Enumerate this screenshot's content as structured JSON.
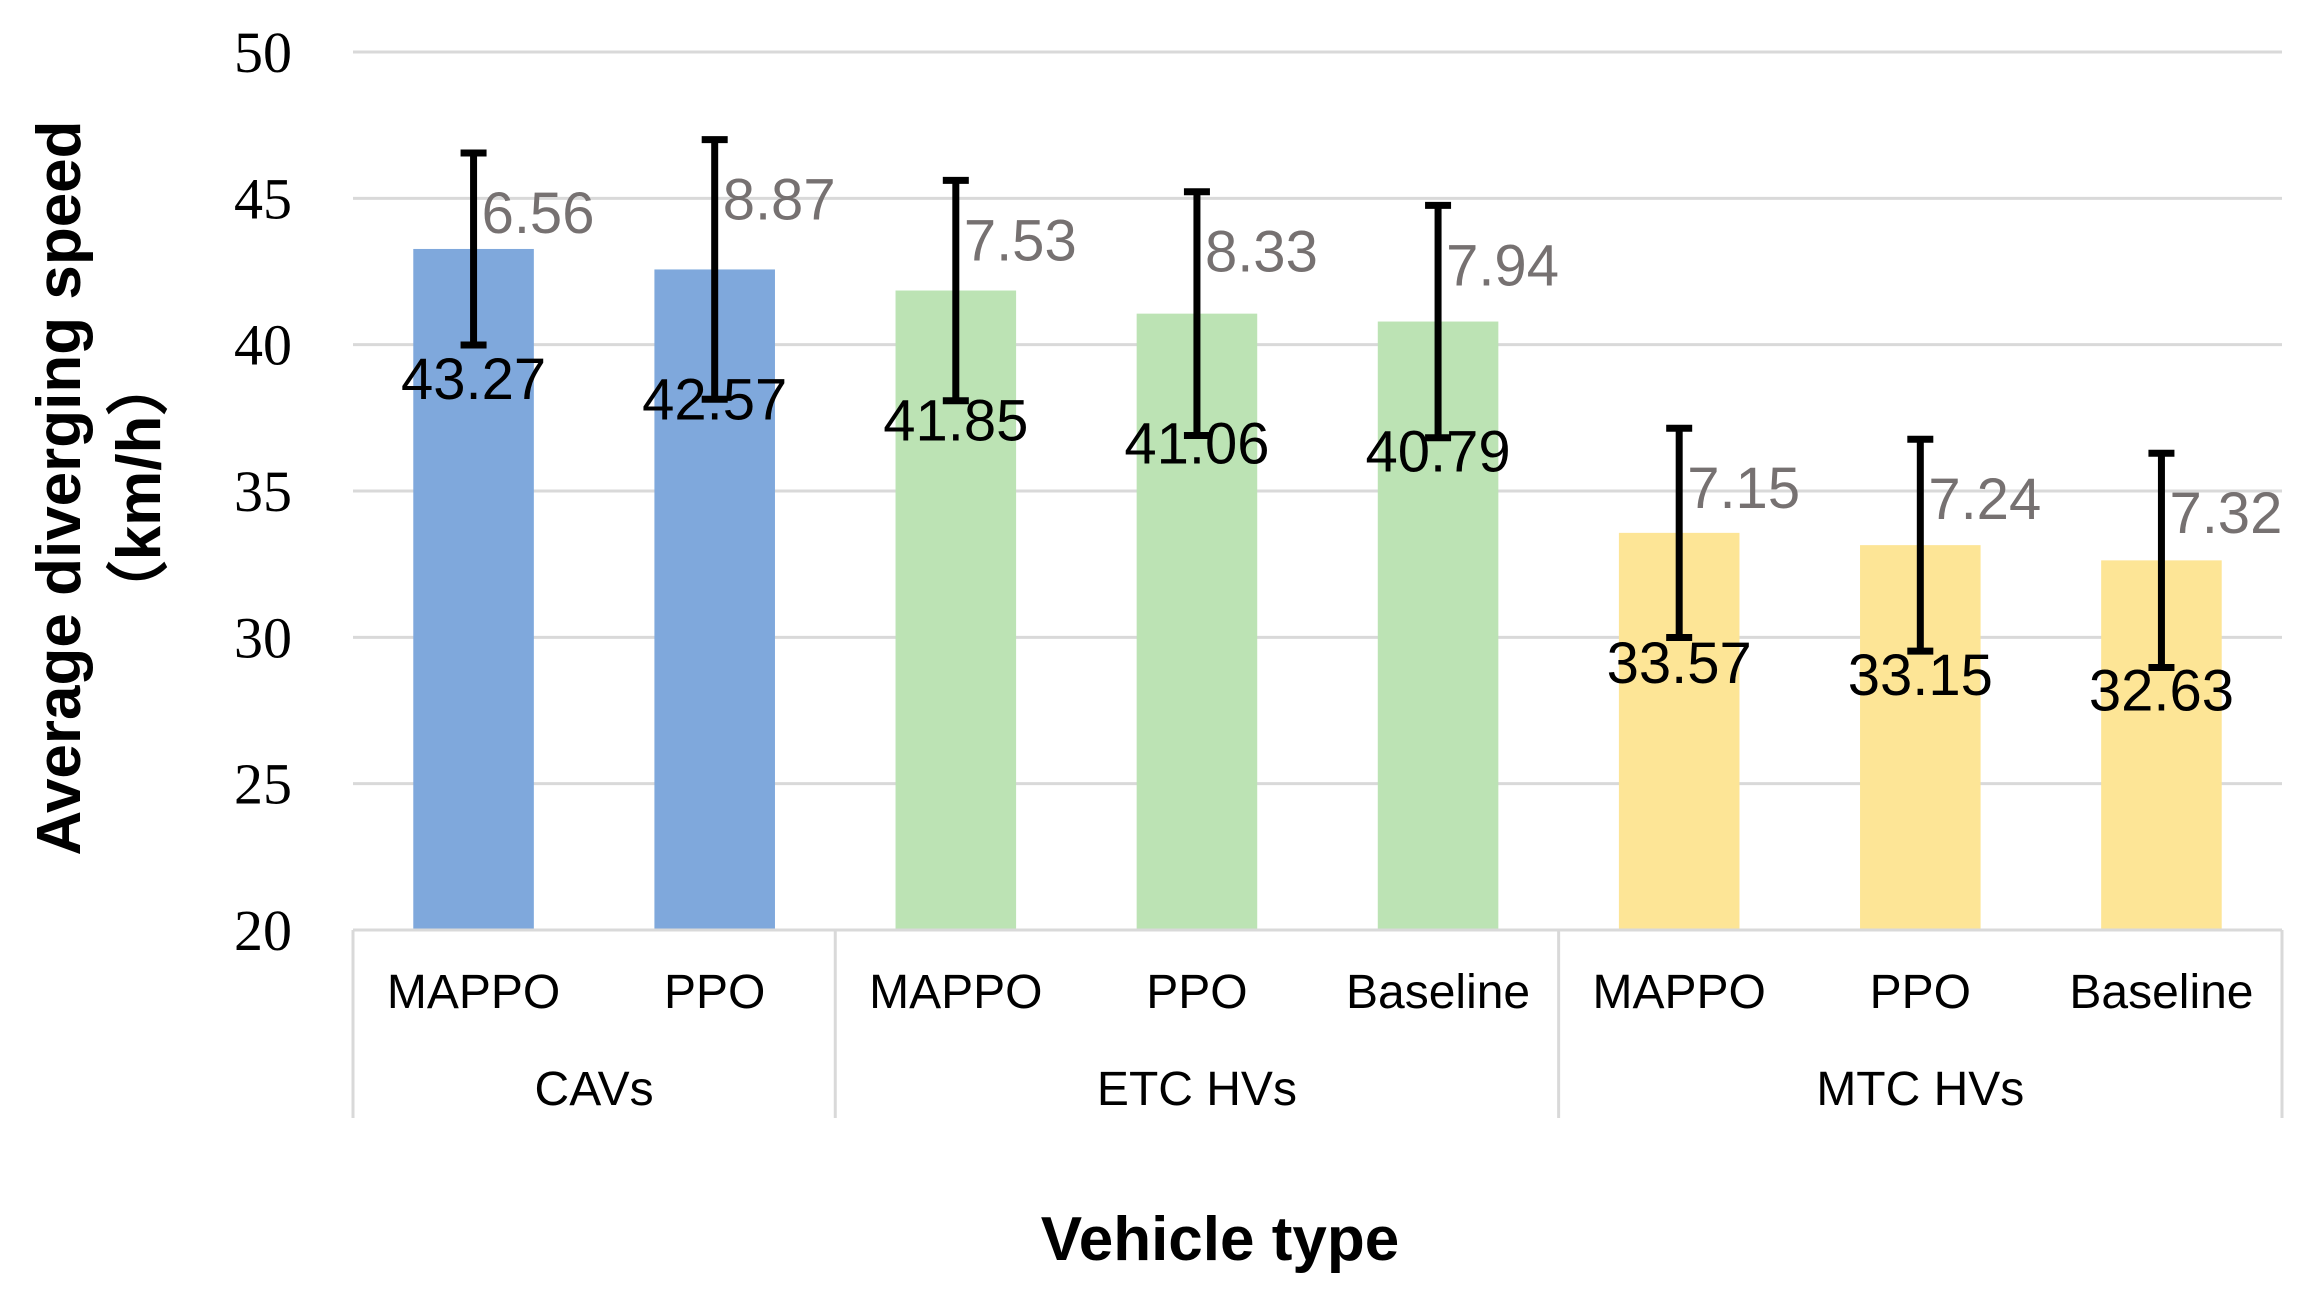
{
  "chart_data": {
    "type": "bar",
    "xlabel": "Vehicle type",
    "ylabel": "Average diverging speed（km/h）",
    "ylabel_lines": [
      "Average diverging speed",
      "（km/h）"
    ],
    "ylim": [
      20,
      50
    ],
    "yticks": [
      20,
      25,
      30,
      35,
      40,
      45,
      50
    ],
    "grid": true,
    "legend": "none",
    "error_bars": true,
    "groups": [
      {
        "name": "CAVs",
        "color": "#7FA8DC",
        "bars": [
          {
            "label": "MAPPO",
            "value": 43.27,
            "error": 6.56,
            "value_label": "43.27",
            "error_label": "6.56"
          },
          {
            "label": "PPO",
            "value": 42.57,
            "error": 8.87,
            "value_label": "42.57",
            "error_label": "8.87"
          }
        ]
      },
      {
        "name": "ETC HVs",
        "color": "#BCE3B4",
        "bars": [
          {
            "label": "MAPPO",
            "value": 41.85,
            "error": 7.53,
            "value_label": "41.85",
            "error_label": "7.53"
          },
          {
            "label": "PPO",
            "value": 41.06,
            "error": 8.33,
            "value_label": "41.06",
            "error_label": "8.33"
          },
          {
            "label": "Baseline",
            "value": 40.79,
            "error": 7.94,
            "value_label": "40.79",
            "error_label": "7.94"
          }
        ]
      },
      {
        "name": "MTC HVs",
        "color": "#FDE596",
        "bars": [
          {
            "label": "MAPPO",
            "value": 33.57,
            "error": 7.15,
            "value_label": "33.57",
            "error_label": "7.15"
          },
          {
            "label": "PPO",
            "value": 33.15,
            "error": 7.24,
            "value_label": "33.15",
            "error_label": "7.24"
          },
          {
            "label": "Baseline",
            "value": 32.63,
            "error": 7.32,
            "value_label": "32.63",
            "error_label": "7.32"
          }
        ]
      }
    ]
  }
}
